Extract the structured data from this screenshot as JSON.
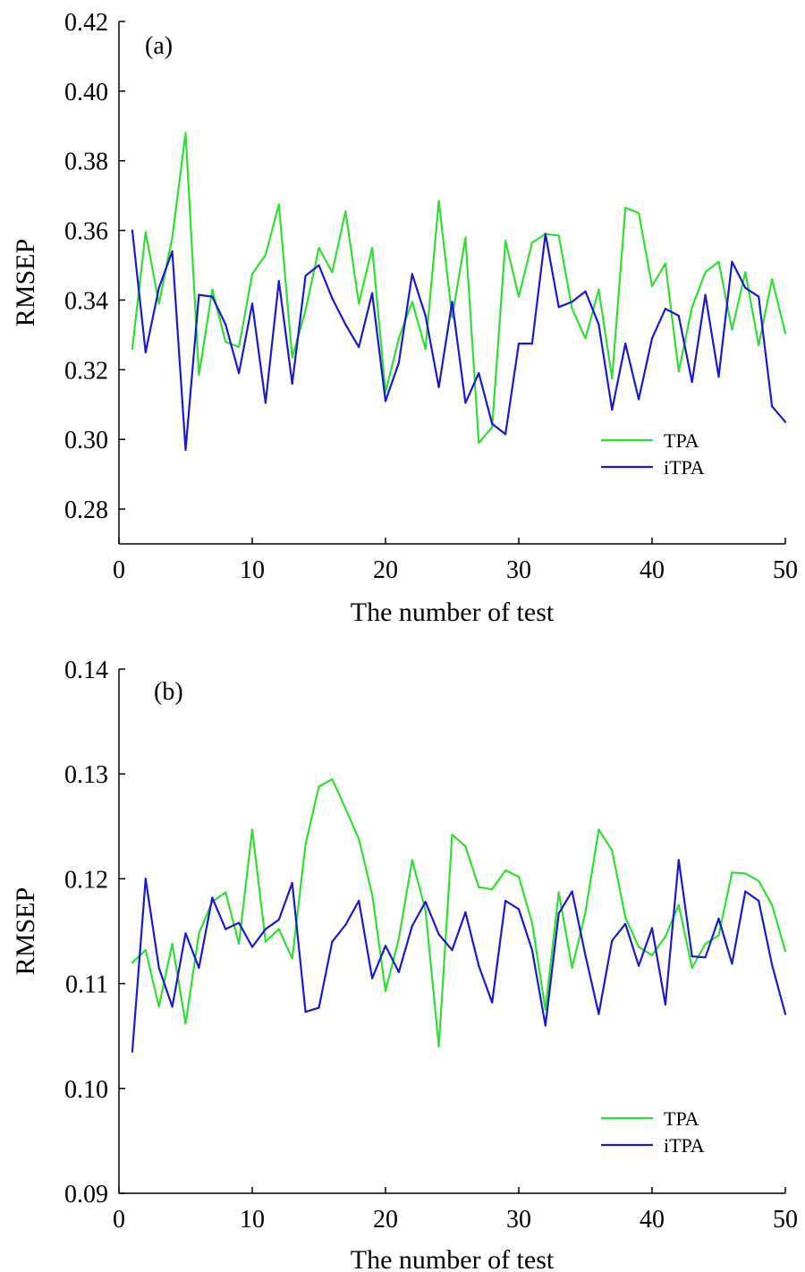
{
  "chart_data": [
    {
      "type": "line",
      "panel_label": "(a)",
      "xlabel": "The number of test",
      "ylabel": "RMSEP",
      "xlim": [
        0,
        50
      ],
      "ylim": [
        0.27,
        0.42
      ],
      "xticks": [
        0,
        10,
        20,
        30,
        40,
        50
      ],
      "xtick_labels": [
        "0",
        "10",
        "20",
        "30",
        "40",
        "50"
      ],
      "yticks": [
        0.28,
        0.3,
        0.32,
        0.34,
        0.36,
        0.38,
        0.4,
        0.42
      ],
      "ytick_labels": [
        "0.28",
        "0.30",
        "0.32",
        "0.34",
        "0.36",
        "0.38",
        "0.40",
        "0.42"
      ],
      "grid": false,
      "legend_position": "lower-right",
      "x": [
        1,
        2,
        3,
        4,
        5,
        6,
        7,
        8,
        9,
        10,
        11,
        12,
        13,
        14,
        15,
        16,
        17,
        18,
        19,
        20,
        21,
        22,
        23,
        24,
        25,
        26,
        27,
        28,
        29,
        30,
        31,
        32,
        33,
        34,
        35,
        36,
        37,
        38,
        39,
        40,
        41,
        42,
        43,
        44,
        45,
        46,
        47,
        48,
        49,
        50
      ],
      "series": [
        {
          "name": "TPA",
          "color": "#33dd33",
          "values": [
            0.326,
            0.3595,
            0.339,
            0.358,
            0.388,
            0.3185,
            0.343,
            0.328,
            0.3265,
            0.3475,
            0.353,
            0.3675,
            0.3235,
            0.337,
            0.355,
            0.348,
            0.3655,
            0.339,
            0.355,
            0.3135,
            0.329,
            0.3395,
            0.326,
            0.3685,
            0.335,
            0.358,
            0.299,
            0.3035,
            0.357,
            0.341,
            0.3565,
            0.359,
            0.3585,
            0.3375,
            0.329,
            0.343,
            0.3175,
            0.3665,
            0.365,
            0.344,
            0.3505,
            0.3195,
            0.338,
            0.348,
            0.351,
            0.3315,
            0.348,
            0.327,
            0.346,
            0.3305
          ]
        },
        {
          "name": "iTPA",
          "color": "#1a1acc",
          "values": [
            0.36,
            0.325,
            0.3435,
            0.354,
            0.297,
            0.3415,
            0.341,
            0.333,
            0.319,
            0.339,
            0.3105,
            0.3455,
            0.316,
            0.347,
            0.35,
            0.3405,
            0.333,
            0.3265,
            0.342,
            0.311,
            0.322,
            0.3475,
            0.3355,
            0.315,
            0.3395,
            0.3105,
            0.319,
            0.3045,
            0.3015,
            0.3275,
            0.3275,
            0.359,
            0.338,
            0.3395,
            0.3425,
            0.333,
            0.3085,
            0.3275,
            0.3115,
            0.329,
            0.3375,
            0.3355,
            0.3165,
            0.3415,
            0.318,
            0.351,
            0.3435,
            0.341,
            0.3095,
            0.305
          ]
        }
      ]
    },
    {
      "type": "line",
      "panel_label": "(b)",
      "xlabel": "The number of test",
      "ylabel": "RMSEP",
      "xlim": [
        0,
        50
      ],
      "ylim": [
        0.09,
        0.14
      ],
      "xticks": [
        0,
        10,
        20,
        30,
        40,
        50
      ],
      "xtick_labels": [
        "0",
        "10",
        "20",
        "30",
        "40",
        "50"
      ],
      "yticks": [
        0.09,
        0.1,
        0.11,
        0.12,
        0.13,
        0.14
      ],
      "ytick_labels": [
        "0.09",
        "0.10",
        "0.11",
        "0.12",
        "0.13",
        "0.14"
      ],
      "grid": false,
      "legend_position": "lower-right",
      "x": [
        1,
        2,
        3,
        4,
        5,
        6,
        7,
        8,
        9,
        10,
        11,
        12,
        13,
        14,
        15,
        16,
        17,
        18,
        19,
        20,
        21,
        22,
        23,
        24,
        25,
        26,
        27,
        28,
        29,
        30,
        31,
        32,
        33,
        34,
        35,
        36,
        37,
        38,
        39,
        40,
        41,
        42,
        43,
        44,
        45,
        46,
        47,
        48,
        49,
        50
      ],
      "series": [
        {
          "name": "TPA",
          "color": "#33dd33",
          "values": [
            0.112,
            0.1132,
            0.1078,
            0.1138,
            0.1062,
            0.1148,
            0.1178,
            0.1187,
            0.1138,
            0.1247,
            0.114,
            0.1152,
            0.1124,
            0.1233,
            0.1288,
            0.1295,
            0.1267,
            0.1238,
            0.1185,
            0.1093,
            0.1143,
            0.1218,
            0.117,
            0.104,
            0.1242,
            0.1231,
            0.1192,
            0.119,
            0.1208,
            0.1202,
            0.1158,
            0.1075,
            0.1187,
            0.1115,
            0.1168,
            0.1247,
            0.1227,
            0.1163,
            0.1135,
            0.1127,
            0.1145,
            0.1175,
            0.1115,
            0.1138,
            0.1146,
            0.1206,
            0.1205,
            0.1198,
            0.1175,
            0.1131
          ]
        },
        {
          "name": "iTPA",
          "color": "#1a1acc",
          "values": [
            0.1035,
            0.12,
            0.1115,
            0.1078,
            0.1148,
            0.1115,
            0.1182,
            0.1152,
            0.1158,
            0.1135,
            0.1152,
            0.1161,
            0.1196,
            0.1073,
            0.1077,
            0.114,
            0.1156,
            0.1179,
            0.1105,
            0.1136,
            0.1111,
            0.1155,
            0.1178,
            0.1147,
            0.1132,
            0.1168,
            0.1117,
            0.1082,
            0.1179,
            0.1171,
            0.1132,
            0.106,
            0.1167,
            0.1188,
            0.1127,
            0.1071,
            0.1141,
            0.1157,
            0.1117,
            0.1153,
            0.108,
            0.1218,
            0.1126,
            0.1125,
            0.1162,
            0.1119,
            0.1188,
            0.1179,
            0.1118,
            0.1071
          ]
        }
      ]
    }
  ]
}
